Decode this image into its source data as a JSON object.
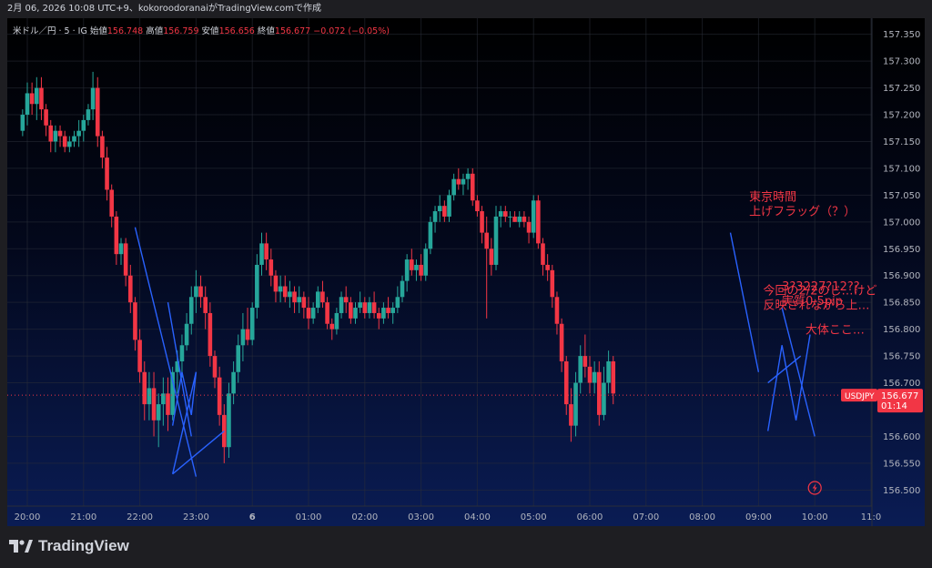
{
  "header": {
    "caption": "2月 06, 2026 10:08 UTC+9、kokoroodoranaiがTradingView.comで作成"
  },
  "legend": {
    "symbol": "米ドル／円 · 5 · IG",
    "open_label": "始値",
    "open": "156.748",
    "high_label": "高値",
    "high": "156.759",
    "low_label": "安値",
    "low": "156.656",
    "close_label": "終値",
    "close": "156.677",
    "change": "−0.072 (−0.05%)"
  },
  "price_tag": {
    "symbol": "USDJPY",
    "price": "156.677",
    "countdown": "01:14"
  },
  "footer": {
    "brand": "TradingView"
  },
  "colors": {
    "up": "#26a69a",
    "down": "#f23645",
    "drawing": "#2962ff",
    "annotation": "#f23645"
  },
  "annotations": [
    {
      "lines": [
        "東京時間",
        "上げフラッグ（？）"
      ],
      "anchor_time": "08:50",
      "anchor_price": 157.04
    },
    {
      "lines": [
        "今回の2/2のじ…けど",
        "反映されながら上…"
      ],
      "anchor_time": "09:05",
      "anchor_price": 156.865,
      "note": "overlapping text"
    },
    {
      "lines": [
        "3?3227?12??",
        "実質0.5pip"
      ],
      "anchor_time": "09:25",
      "anchor_price": 156.872
    },
    {
      "lines": [
        "大体ここ…"
      ],
      "anchor_time": "09:50",
      "anchor_price": 156.792
    }
  ],
  "chart_data": {
    "type": "candlestick",
    "symbol": "USDJPY",
    "interval": "5",
    "x_tick_labels": [
      "20:00",
      "21:00",
      "22:00",
      "23:00",
      "6",
      "01:00",
      "02:00",
      "03:00",
      "04:00",
      "05:00",
      "06:00",
      "07:00",
      "08:00",
      "09:00",
      "10:00",
      "11:0"
    ],
    "y_tick_labels": [
      "157.350",
      "157.300",
      "157.250",
      "157.200",
      "157.150",
      "157.100",
      "157.050",
      "157.000",
      "156.950",
      "156.900",
      "156.850",
      "156.800",
      "156.750",
      "156.700",
      "156.600",
      "156.550",
      "156.500"
    ],
    "ylim": [
      156.47,
      157.38
    ],
    "grid": true,
    "current_price": 156.677,
    "candles_note": "approximate OHLC values read from the chart, 5-minute bars from about 19:55 to 10:08",
    "candles": [
      [
        157.17,
        157.21,
        157.16,
        157.2
      ],
      [
        157.2,
        157.26,
        157.18,
        157.24
      ],
      [
        157.24,
        157.26,
        157.2,
        157.22
      ],
      [
        157.22,
        157.27,
        157.19,
        157.25
      ],
      [
        157.25,
        157.27,
        157.19,
        157.21
      ],
      [
        157.21,
        157.22,
        157.16,
        157.18
      ],
      [
        157.18,
        157.19,
        157.13,
        157.15
      ],
      [
        157.15,
        157.18,
        157.13,
        157.17
      ],
      [
        157.17,
        157.18,
        157.14,
        157.16
      ],
      [
        157.16,
        157.17,
        157.13,
        157.14
      ],
      [
        157.14,
        157.16,
        157.13,
        157.15
      ],
      [
        157.15,
        157.17,
        157.14,
        157.16
      ],
      [
        157.16,
        157.19,
        157.14,
        157.17
      ],
      [
        157.17,
        157.2,
        157.15,
        157.19
      ],
      [
        157.19,
        157.22,
        157.18,
        157.21
      ],
      [
        157.21,
        157.28,
        157.19,
        157.25
      ],
      [
        157.25,
        157.27,
        157.14,
        157.16
      ],
      [
        157.16,
        157.17,
        157.1,
        157.12
      ],
      [
        157.12,
        157.14,
        157.04,
        157.06
      ],
      [
        157.06,
        157.07,
        156.99,
        157.01
      ],
      [
        157.01,
        157.02,
        156.92,
        156.94
      ],
      [
        156.94,
        156.97,
        156.92,
        156.96
      ],
      [
        156.96,
        156.97,
        156.88,
        156.9
      ],
      [
        156.9,
        156.92,
        156.83,
        156.85
      ],
      [
        156.85,
        156.86,
        156.76,
        156.78
      ],
      [
        156.78,
        156.8,
        156.7,
        156.72
      ],
      [
        156.72,
        156.74,
        156.63,
        156.66
      ],
      [
        156.66,
        156.72,
        156.63,
        156.69
      ],
      [
        156.69,
        156.72,
        156.6,
        156.63
      ],
      [
        156.63,
        156.68,
        156.58,
        156.66
      ],
      [
        156.66,
        156.71,
        156.62,
        156.68
      ],
      [
        156.68,
        156.71,
        156.61,
        156.64
      ],
      [
        156.64,
        156.73,
        156.63,
        156.72
      ],
      [
        156.72,
        156.76,
        156.68,
        156.74
      ],
      [
        156.74,
        156.79,
        156.71,
        156.77
      ],
      [
        156.77,
        156.83,
        156.76,
        156.81
      ],
      [
        156.81,
        156.88,
        156.79,
        156.86
      ],
      [
        156.86,
        156.91,
        156.83,
        156.88
      ],
      [
        156.88,
        156.9,
        156.84,
        156.86
      ],
      [
        156.86,
        156.88,
        156.8,
        156.83
      ],
      [
        156.83,
        156.85,
        156.73,
        156.75
      ],
      [
        156.75,
        156.76,
        156.69,
        156.71
      ],
      [
        156.71,
        156.73,
        156.62,
        156.64
      ],
      [
        156.64,
        156.66,
        156.55,
        156.58
      ],
      [
        156.58,
        156.7,
        156.56,
        156.68
      ],
      [
        156.68,
        156.74,
        156.66,
        156.72
      ],
      [
        156.72,
        156.79,
        156.7,
        156.77
      ],
      [
        156.77,
        156.83,
        156.74,
        156.8
      ],
      [
        156.8,
        156.84,
        156.77,
        156.78
      ],
      [
        156.78,
        156.85,
        156.77,
        156.84
      ],
      [
        156.84,
        156.94,
        156.82,
        156.92
      ],
      [
        156.92,
        156.98,
        156.9,
        156.96
      ],
      [
        156.96,
        156.98,
        156.91,
        156.93
      ],
      [
        156.93,
        156.95,
        156.88,
        156.9
      ],
      [
        156.9,
        156.91,
        156.85,
        156.87
      ],
      [
        156.87,
        156.9,
        156.85,
        156.88
      ],
      [
        156.88,
        156.9,
        156.85,
        156.86
      ],
      [
        156.86,
        156.89,
        156.84,
        156.87
      ],
      [
        156.87,
        156.88,
        156.83,
        156.85
      ],
      [
        156.85,
        156.88,
        156.83,
        156.86
      ],
      [
        156.86,
        156.87,
        156.82,
        156.84
      ],
      [
        156.84,
        156.86,
        156.8,
        156.82
      ],
      [
        156.82,
        156.85,
        156.81,
        156.84
      ],
      [
        156.84,
        156.88,
        156.83,
        156.87
      ],
      [
        156.87,
        156.89,
        156.84,
        156.85
      ],
      [
        156.85,
        156.86,
        156.8,
        156.81
      ],
      [
        156.81,
        156.82,
        156.78,
        156.8
      ],
      [
        156.8,
        156.84,
        156.79,
        156.83
      ],
      [
        156.83,
        156.87,
        156.82,
        156.86
      ],
      [
        156.86,
        156.88,
        156.83,
        156.85
      ],
      [
        156.85,
        156.86,
        156.81,
        156.82
      ],
      [
        156.82,
        156.85,
        156.81,
        156.84
      ],
      [
        156.84,
        156.87,
        156.83,
        156.85
      ],
      [
        156.85,
        156.86,
        156.82,
        156.83
      ],
      [
        156.83,
        156.86,
        156.82,
        156.85
      ],
      [
        156.85,
        156.87,
        156.82,
        156.83
      ],
      [
        156.83,
        156.84,
        156.8,
        156.82
      ],
      [
        156.82,
        156.85,
        156.81,
        156.84
      ],
      [
        156.84,
        156.86,
        156.82,
        156.83
      ],
      [
        156.83,
        156.85,
        156.81,
        156.84
      ],
      [
        156.84,
        156.88,
        156.83,
        156.86
      ],
      [
        156.86,
        156.9,
        156.85,
        156.89
      ],
      [
        156.89,
        156.94,
        156.87,
        156.93
      ],
      [
        156.93,
        156.95,
        156.9,
        156.91
      ],
      [
        156.91,
        156.93,
        156.89,
        156.92
      ],
      [
        156.92,
        156.94,
        156.89,
        156.9
      ],
      [
        156.9,
        156.96,
        156.89,
        156.95
      ],
      [
        156.95,
        157.01,
        156.94,
        157.0
      ],
      [
        157.0,
        157.03,
        156.98,
        157.02
      ],
      [
        157.02,
        157.05,
        157.0,
        157.03
      ],
      [
        157.03,
        157.04,
        157.0,
        157.01
      ],
      [
        157.01,
        157.06,
        157.0,
        157.05
      ],
      [
        157.05,
        157.09,
        157.04,
        157.08
      ],
      [
        157.08,
        157.1,
        157.06,
        157.07
      ],
      [
        157.07,
        157.09,
        157.05,
        157.08
      ],
      [
        157.08,
        157.1,
        157.06,
        157.09
      ],
      [
        157.09,
        157.1,
        157.03,
        157.04
      ],
      [
        157.04,
        157.05,
        157.01,
        157.02
      ],
      [
        157.02,
        157.03,
        156.96,
        156.98
      ],
      [
        156.98,
        157.01,
        156.82,
        156.95
      ],
      [
        156.95,
        156.97,
        156.9,
        156.92
      ],
      [
        156.92,
        157.03,
        156.91,
        157.01
      ],
      [
        157.01,
        157.03,
        156.99,
        157.02
      ],
      [
        157.02,
        157.03,
        157.0,
        157.01
      ],
      [
        157.01,
        157.02,
        156.99,
        157.01
      ],
      [
        157.01,
        157.02,
        157.0,
        157.0
      ],
      [
        157.0,
        157.02,
        156.99,
        157.01
      ],
      [
        157.01,
        157.02,
        156.99,
        157.0
      ],
      [
        157.0,
        157.01,
        156.96,
        156.98
      ],
      [
        156.98,
        157.05,
        156.97,
        157.04
      ],
      [
        157.04,
        157.05,
        156.95,
        156.96
      ],
      [
        156.96,
        156.97,
        156.9,
        156.92
      ],
      [
        156.92,
        156.94,
        156.89,
        156.91
      ],
      [
        156.91,
        156.92,
        156.84,
        156.86
      ],
      [
        156.86,
        156.87,
        156.79,
        156.81
      ],
      [
        156.81,
        156.82,
        156.72,
        156.74
      ],
      [
        156.74,
        156.75,
        156.64,
        156.66
      ],
      [
        156.66,
        156.69,
        156.59,
        156.62
      ],
      [
        156.62,
        156.72,
        156.6,
        156.7
      ],
      [
        156.7,
        156.77,
        156.68,
        156.75
      ],
      [
        156.75,
        156.79,
        156.71,
        156.73
      ],
      [
        156.73,
        156.75,
        156.68,
        156.7
      ],
      [
        156.7,
        156.74,
        156.68,
        156.72
      ],
      [
        156.72,
        156.74,
        156.62,
        156.64
      ],
      [
        156.64,
        156.73,
        156.63,
        156.7
      ],
      [
        156.7,
        156.76,
        156.68,
        156.74
      ],
      [
        156.74,
        156.75,
        156.66,
        156.68
      ]
    ]
  }
}
